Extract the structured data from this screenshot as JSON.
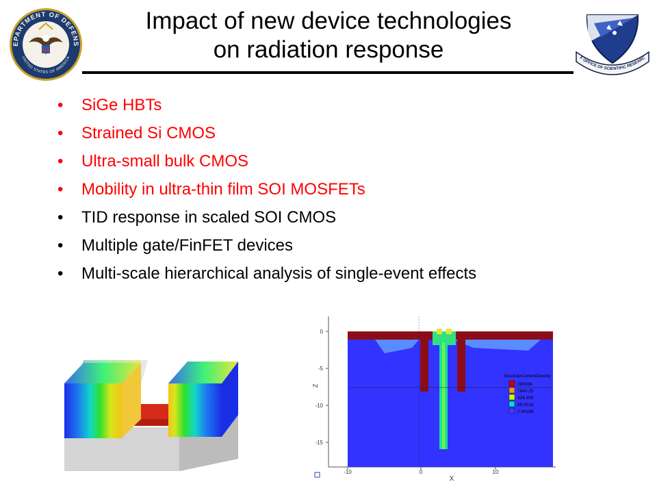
{
  "slide": {
    "title_line1": "Impact of new device technologies",
    "title_line2": "on radiation response"
  },
  "bullets": [
    {
      "text": "SiGe HBTs",
      "color": "#ff0000"
    },
    {
      "text": "Strained Si CMOS",
      "color": "#ff0000"
    },
    {
      "text": "Ultra-small bulk CMOS",
      "color": "#ff0000"
    },
    {
      "text": "Mobility in ultra-thin film SOI MOSFETs",
      "color": "#ff0000"
    },
    {
      "text": "TID response in scaled SOI CMOS",
      "color": "#000000"
    },
    {
      "text": "Multiple gate/FinFET devices",
      "color": "#000000"
    },
    {
      "text": "Multi-scale hierarchical analysis of single-event effects",
      "color": "#000000"
    }
  ],
  "logos": {
    "dod": {
      "ring_text": "DEPARTMENT OF DEFENSE",
      "bottom_text": "UNITED STATES OF AMERICA",
      "icon": "eagle-seal-icon"
    },
    "afosr": {
      "ribbon_text": "AF OFFICE OF SCIENTIFIC RESEARCH",
      "icon": "shield-crest-icon"
    }
  },
  "simulation_plot": {
    "y_axis_label": "Z",
    "x_axis_label": "X",
    "y_ticks": [
      "0",
      "-5",
      "-10",
      "-15"
    ],
    "x_ticks": [
      "-10",
      "0",
      "10"
    ],
    "legend_title": "AbsoluteCurrentDensity",
    "legend_entries": [
      {
        "label": "285384",
        "color": "#cc0000"
      },
      {
        "label": "7640.25",
        "color": "#ff9900"
      },
      {
        "label": "524.005",
        "color": "#ccff00"
      },
      {
        "label": "59.0016",
        "color": "#00e6b8"
      },
      {
        "label": "2.90288",
        "color": "#3d3dff"
      }
    ]
  }
}
